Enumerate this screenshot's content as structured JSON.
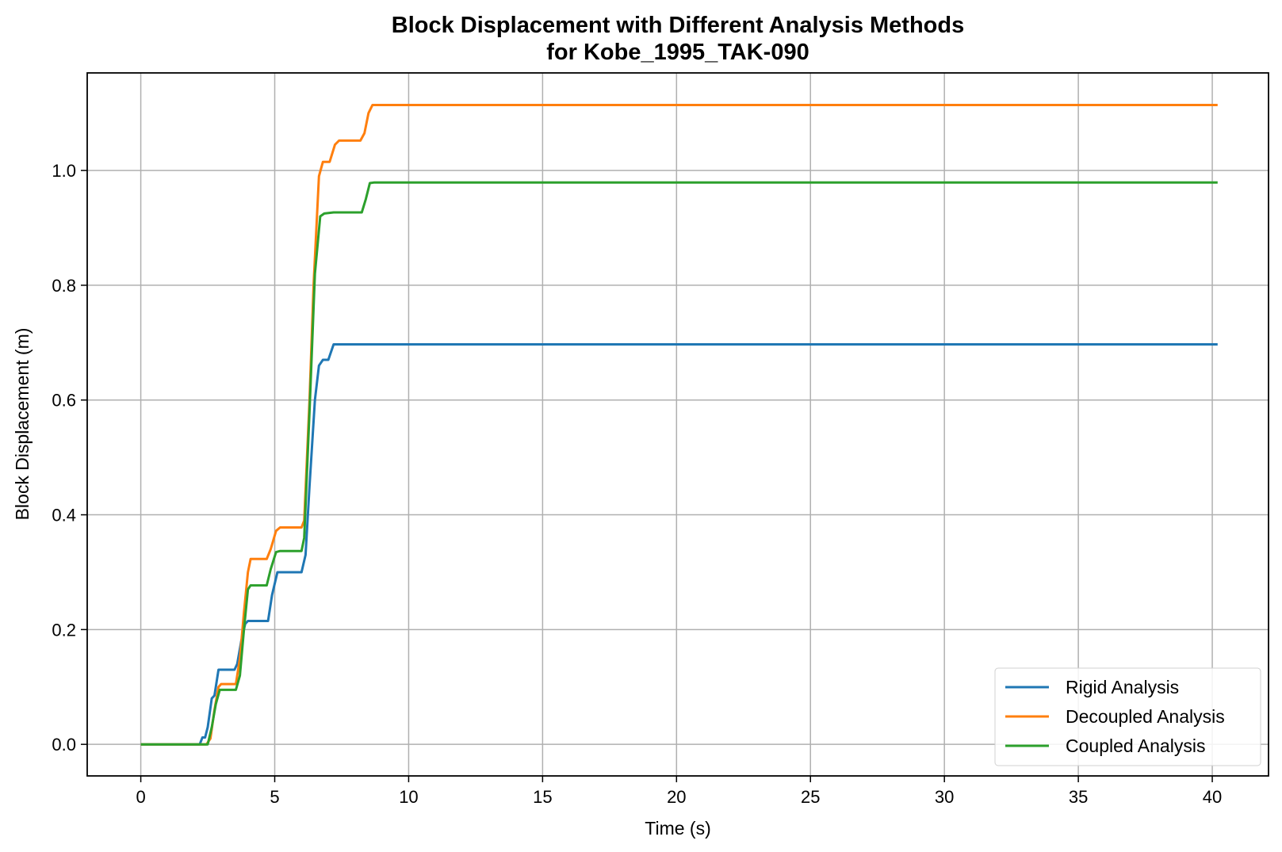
{
  "chart_data": {
    "type": "line",
    "title": "Block Displacement with Different Analysis Methods",
    "subtitle": "for Kobe_1995_TAK-090",
    "xlabel": "Time (s)",
    "ylabel": "Block Displacement (m)",
    "xlim": [
      -2.0,
      42.1
    ],
    "ylim": [
      -0.055,
      1.17
    ],
    "xticks": [
      0,
      5,
      10,
      15,
      20,
      25,
      30,
      35,
      40
    ],
    "yticks": [
      0.0,
      0.2,
      0.4,
      0.6,
      0.8,
      1.0
    ],
    "xtick_labels": [
      "0",
      "5",
      "10",
      "15",
      "20",
      "25",
      "30",
      "35",
      "40"
    ],
    "ytick_labels": [
      "0.0",
      "0.2",
      "0.4",
      "0.6",
      "0.8",
      "1.0"
    ],
    "grid": true,
    "legend_position": "lower-right",
    "series": [
      {
        "name": "Rigid Analysis",
        "color": "#1f77b4",
        "points": [
          [
            0,
            0
          ],
          [
            2.2,
            0
          ],
          [
            2.3,
            0.012
          ],
          [
            2.4,
            0.012
          ],
          [
            2.5,
            0.03
          ],
          [
            2.65,
            0.08
          ],
          [
            2.75,
            0.085
          ],
          [
            2.9,
            0.13
          ],
          [
            3.5,
            0.13
          ],
          [
            3.6,
            0.14
          ],
          [
            3.75,
            0.18
          ],
          [
            3.9,
            0.21
          ],
          [
            4.0,
            0.215
          ],
          [
            4.75,
            0.215
          ],
          [
            4.9,
            0.26
          ],
          [
            5.1,
            0.3
          ],
          [
            6.0,
            0.3
          ],
          [
            6.15,
            0.33
          ],
          [
            6.3,
            0.45
          ],
          [
            6.5,
            0.6
          ],
          [
            6.65,
            0.66
          ],
          [
            6.8,
            0.67
          ],
          [
            7.0,
            0.67
          ],
          [
            7.2,
            0.697
          ],
          [
            40.2,
            0.697
          ]
        ]
      },
      {
        "name": "Decoupled Analysis",
        "color": "#ff7f0e",
        "points": [
          [
            0,
            0
          ],
          [
            2.45,
            0
          ],
          [
            2.6,
            0.01
          ],
          [
            2.75,
            0.06
          ],
          [
            2.9,
            0.1
          ],
          [
            3.0,
            0.105
          ],
          [
            3.55,
            0.105
          ],
          [
            3.7,
            0.15
          ],
          [
            3.85,
            0.23
          ],
          [
            4.0,
            0.3
          ],
          [
            4.1,
            0.323
          ],
          [
            4.7,
            0.323
          ],
          [
            4.85,
            0.34
          ],
          [
            5.05,
            0.372
          ],
          [
            5.2,
            0.378
          ],
          [
            6.0,
            0.378
          ],
          [
            6.1,
            0.39
          ],
          [
            6.3,
            0.6
          ],
          [
            6.45,
            0.8
          ],
          [
            6.65,
            0.99
          ],
          [
            6.8,
            1.015
          ],
          [
            7.05,
            1.015
          ],
          [
            7.25,
            1.045
          ],
          [
            7.4,
            1.052
          ],
          [
            8.2,
            1.052
          ],
          [
            8.35,
            1.065
          ],
          [
            8.5,
            1.1
          ],
          [
            8.65,
            1.114
          ],
          [
            40.2,
            1.114
          ]
        ]
      },
      {
        "name": "Coupled Analysis",
        "color": "#2ca02c",
        "points": [
          [
            0,
            0
          ],
          [
            2.5,
            0
          ],
          [
            2.65,
            0.03
          ],
          [
            2.8,
            0.07
          ],
          [
            2.95,
            0.095
          ],
          [
            3.55,
            0.095
          ],
          [
            3.7,
            0.12
          ],
          [
            3.85,
            0.2
          ],
          [
            4.0,
            0.27
          ],
          [
            4.1,
            0.277
          ],
          [
            4.7,
            0.277
          ],
          [
            4.85,
            0.305
          ],
          [
            5.05,
            0.335
          ],
          [
            5.2,
            0.337
          ],
          [
            6.0,
            0.337
          ],
          [
            6.1,
            0.36
          ],
          [
            6.3,
            0.58
          ],
          [
            6.5,
            0.82
          ],
          [
            6.7,
            0.92
          ],
          [
            6.85,
            0.925
          ],
          [
            7.2,
            0.927
          ],
          [
            8.25,
            0.927
          ],
          [
            8.4,
            0.95
          ],
          [
            8.55,
            0.978
          ],
          [
            8.7,
            0.979
          ],
          [
            40.2,
            0.979
          ]
        ]
      }
    ]
  }
}
